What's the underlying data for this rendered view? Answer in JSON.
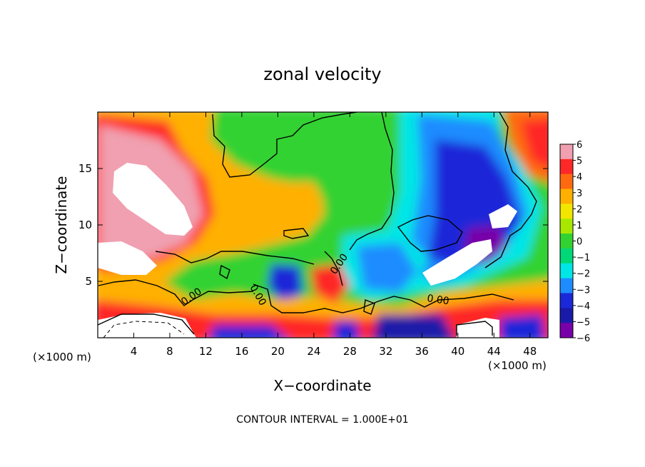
{
  "chart_data": {
    "type": "heatmap",
    "title": "zonal velocity",
    "xlabel": "X−coordinate",
    "ylabel": "Z−coordinate",
    "x_units": "(×1000 m)",
    "y_units": "(×1000 m)",
    "xlim": [
      0,
      50
    ],
    "ylim": [
      0,
      20
    ],
    "x_ticks": [
      4,
      8,
      12,
      16,
      20,
      24,
      28,
      32,
      36,
      40,
      44,
      48
    ],
    "y_ticks": [
      5,
      10,
      15
    ],
    "colorbar": {
      "range": [
        -6,
        6
      ],
      "ticks": [
        6,
        5,
        4,
        3,
        2,
        1,
        0,
        -1,
        -2,
        -3,
        -4,
        -5,
        -6
      ],
      "tick_labels": [
        "6",
        "5",
        "4",
        "3",
        "2",
        "1",
        "0",
        "−1",
        "−2",
        "−3",
        "−4",
        "−5",
        "−6"
      ],
      "colors": [
        "#f0a0b0",
        "#ff2828",
        "#ff6a10",
        "#ffb000",
        "#f2e600",
        "#a8e800",
        "#32d232",
        "#00d878",
        "#00e6e6",
        "#1e8cff",
        "#1a28d8",
        "#1a1aa8",
        "#7800a8"
      ]
    },
    "contour_labels": [
      "0.00",
      "0.00",
      "0.00",
      "0.00"
    ],
    "footnote": "CONTOUR INTERVAL = 1.000E+01"
  }
}
